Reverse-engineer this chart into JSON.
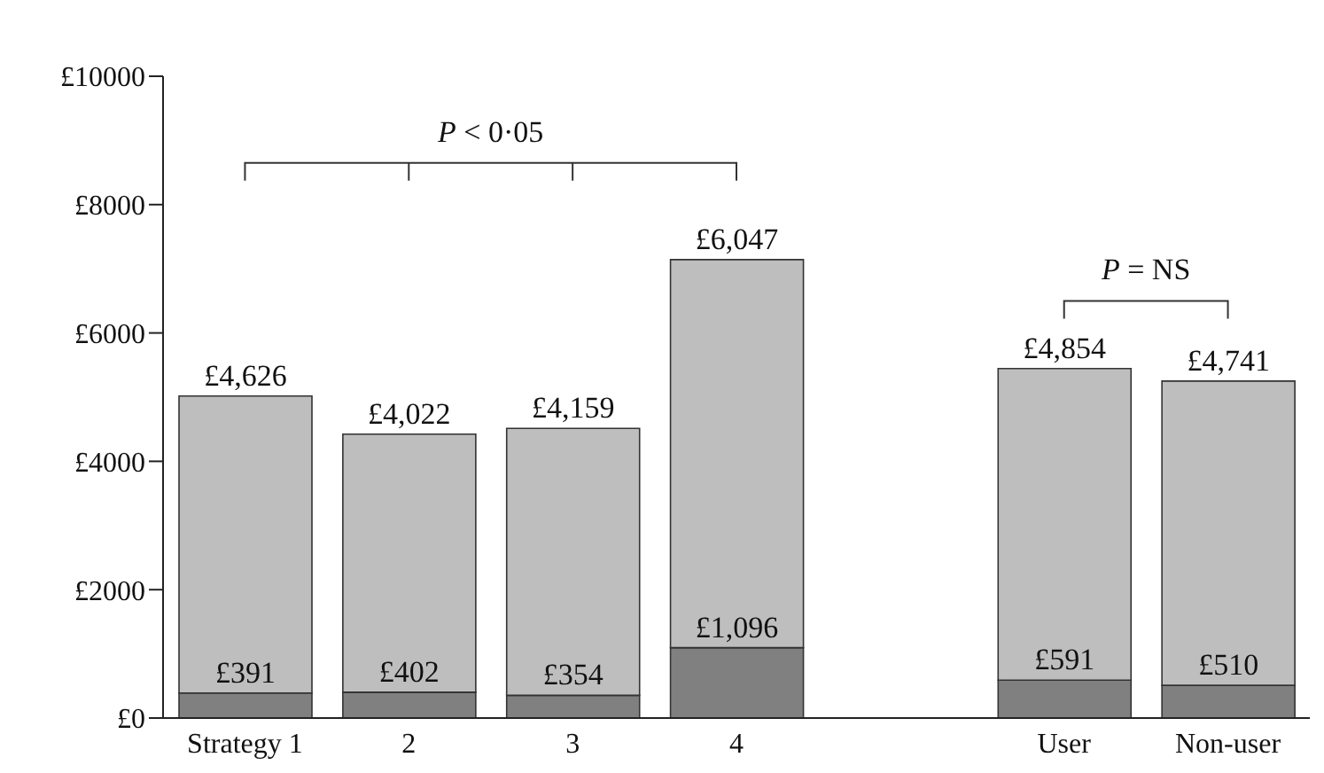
{
  "chart_data": {
    "type": "bar",
    "stacked": true,
    "categories": [
      "Strategy 1",
      "2",
      "3",
      "4",
      null,
      "User",
      "Non-user"
    ],
    "series": [
      {
        "color": "#808080",
        "values": [
          391,
          402,
          354,
          1096,
          null,
          591,
          510
        ],
        "value_labels": [
          "£391",
          "£402",
          "£354",
          "£1,096",
          null,
          "£591",
          "£510"
        ]
      },
      {
        "color": "#bebebe",
        "values": [
          4626,
          4022,
          4159,
          6047,
          null,
          4854,
          4741
        ],
        "value_labels": [
          "£4,626",
          "£4,022",
          "£4,159",
          "£6,047",
          null,
          "£4,854",
          "£4,741"
        ]
      }
    ],
    "ylim": [
      0,
      10000
    ],
    "yticks": [
      {
        "value": 0,
        "label": "£0"
      },
      {
        "value": 2000,
        "label": "£2000"
      },
      {
        "value": 4000,
        "label": "£4000"
      },
      {
        "value": 6000,
        "label": "£6000"
      },
      {
        "value": 8000,
        "label": "£8000"
      },
      {
        "value": 10000,
        "label": "£10000"
      }
    ],
    "grid": false,
    "legend": false,
    "annotations": [
      "P < 0·05",
      "P = NS"
    ]
  }
}
